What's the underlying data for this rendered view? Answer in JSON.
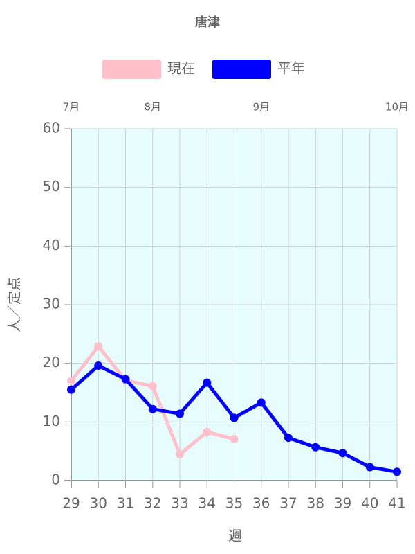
{
  "chart_data": {
    "type": "line",
    "title": "唐津",
    "x_label": "週",
    "y_label": "人／定点",
    "categories": [
      29,
      30,
      31,
      32,
      33,
      34,
      35,
      36,
      37,
      38,
      39,
      40,
      41
    ],
    "month_labels": [
      {
        "label": "7月",
        "x": 29
      },
      {
        "label": "8月",
        "x": 32
      },
      {
        "label": "9月",
        "x": 36
      },
      {
        "label": "10月",
        "x": 41
      }
    ],
    "series": [
      {
        "name": "現在",
        "color": "#ffc0cb",
        "values": [
          17.0,
          22.9,
          17.1,
          16.1,
          4.5,
          8.3,
          7.1,
          null,
          null,
          null,
          null,
          null,
          null
        ]
      },
      {
        "name": "平年",
        "color": "#0000ff",
        "values": [
          15.5,
          19.6,
          17.3,
          12.2,
          11.4,
          16.7,
          10.7,
          13.3,
          7.3,
          5.7,
          4.7,
          2.3,
          1.5
        ]
      }
    ],
    "ylim": [
      0,
      60
    ],
    "yticks": [
      0,
      10,
      20,
      30,
      40,
      50,
      60
    ],
    "grid": true,
    "plot_background": "#e6fcfd"
  }
}
